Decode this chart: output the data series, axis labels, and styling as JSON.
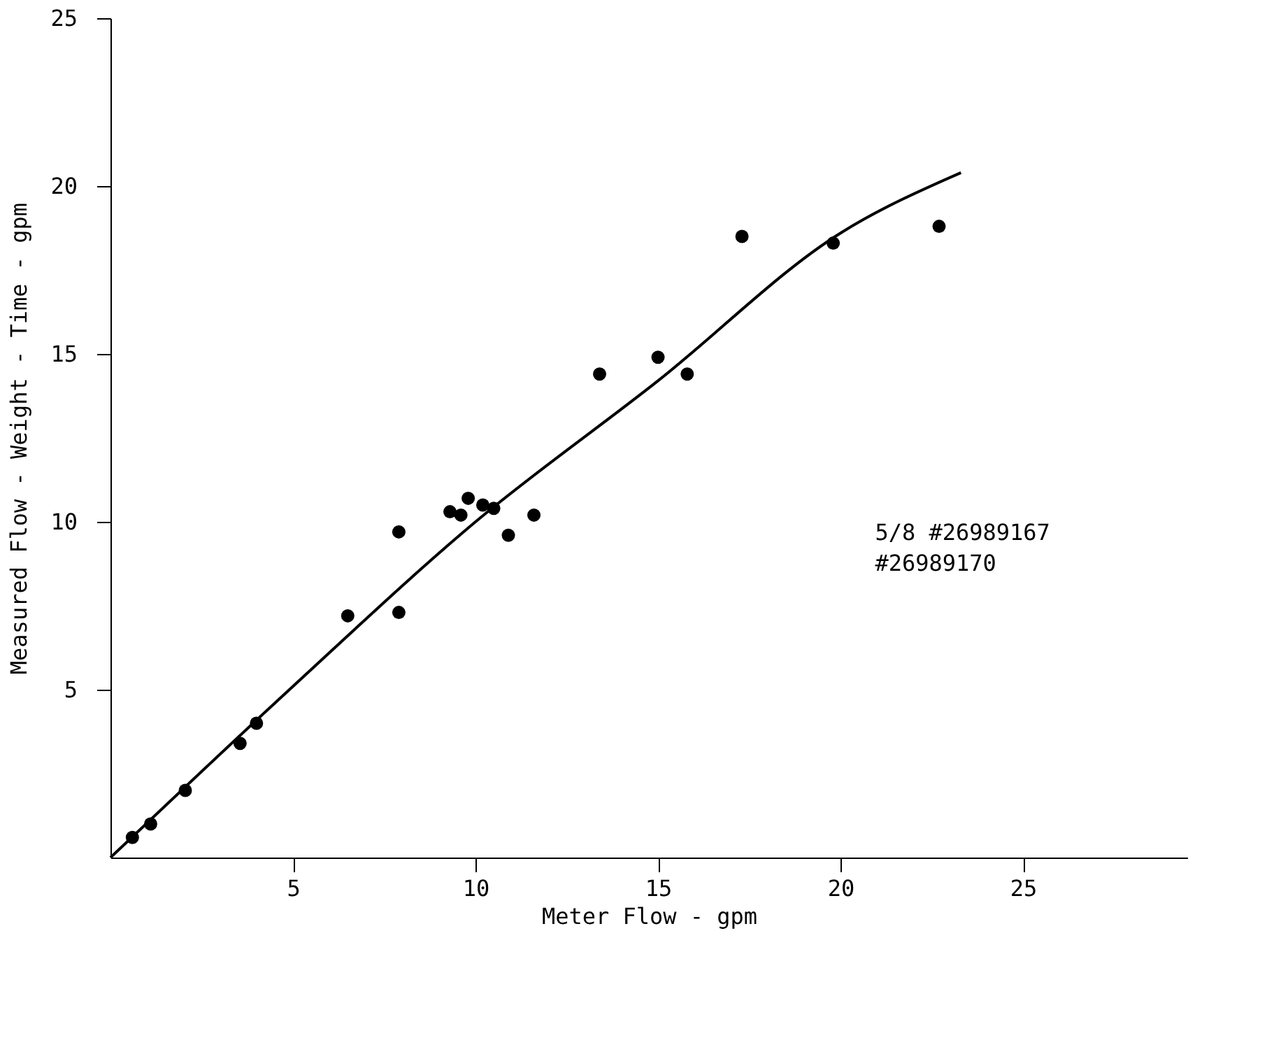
{
  "chart_data": {
    "type": "scatter",
    "xlabel": "Meter Flow - gpm",
    "ylabel": "Measured Flow - Weight - Time - gpm",
    "xlim": [
      0,
      29.5
    ],
    "ylim": [
      0,
      25
    ],
    "xticks": [
      5,
      10,
      15,
      20,
      25
    ],
    "yticks": [
      5,
      10,
      15,
      20,
      25
    ],
    "grid": false,
    "series": [
      {
        "marker": "circle",
        "color": "#000000",
        "x": [
          0.6,
          1.1,
          2.05,
          3.55,
          4.0,
          6.5,
          7.9,
          7.9,
          9.3,
          9.6,
          9.8,
          10.2,
          10.5,
          10.9,
          11.6,
          13.4,
          15.0,
          15.8,
          17.3,
          19.8,
          22.7
        ],
        "values": [
          0.6,
          1.0,
          2.0,
          3.4,
          4.0,
          7.2,
          7.3,
          9.7,
          10.3,
          10.2,
          10.7,
          10.5,
          10.4,
          9.6,
          10.2,
          14.4,
          14.9,
          14.4,
          18.5,
          18.3,
          18.8
        ]
      },
      {
        "type": "line",
        "marker": "none",
        "line_style": "solid",
        "color": "#000000",
        "x": [
          0,
          5,
          10,
          15,
          20,
          23.3
        ],
        "values": [
          0,
          5.1,
          10.0,
          14.2,
          18.6,
          20.4
        ]
      }
    ],
    "annotations": [
      "5/8 #26989167\n      #26989170"
    ]
  }
}
